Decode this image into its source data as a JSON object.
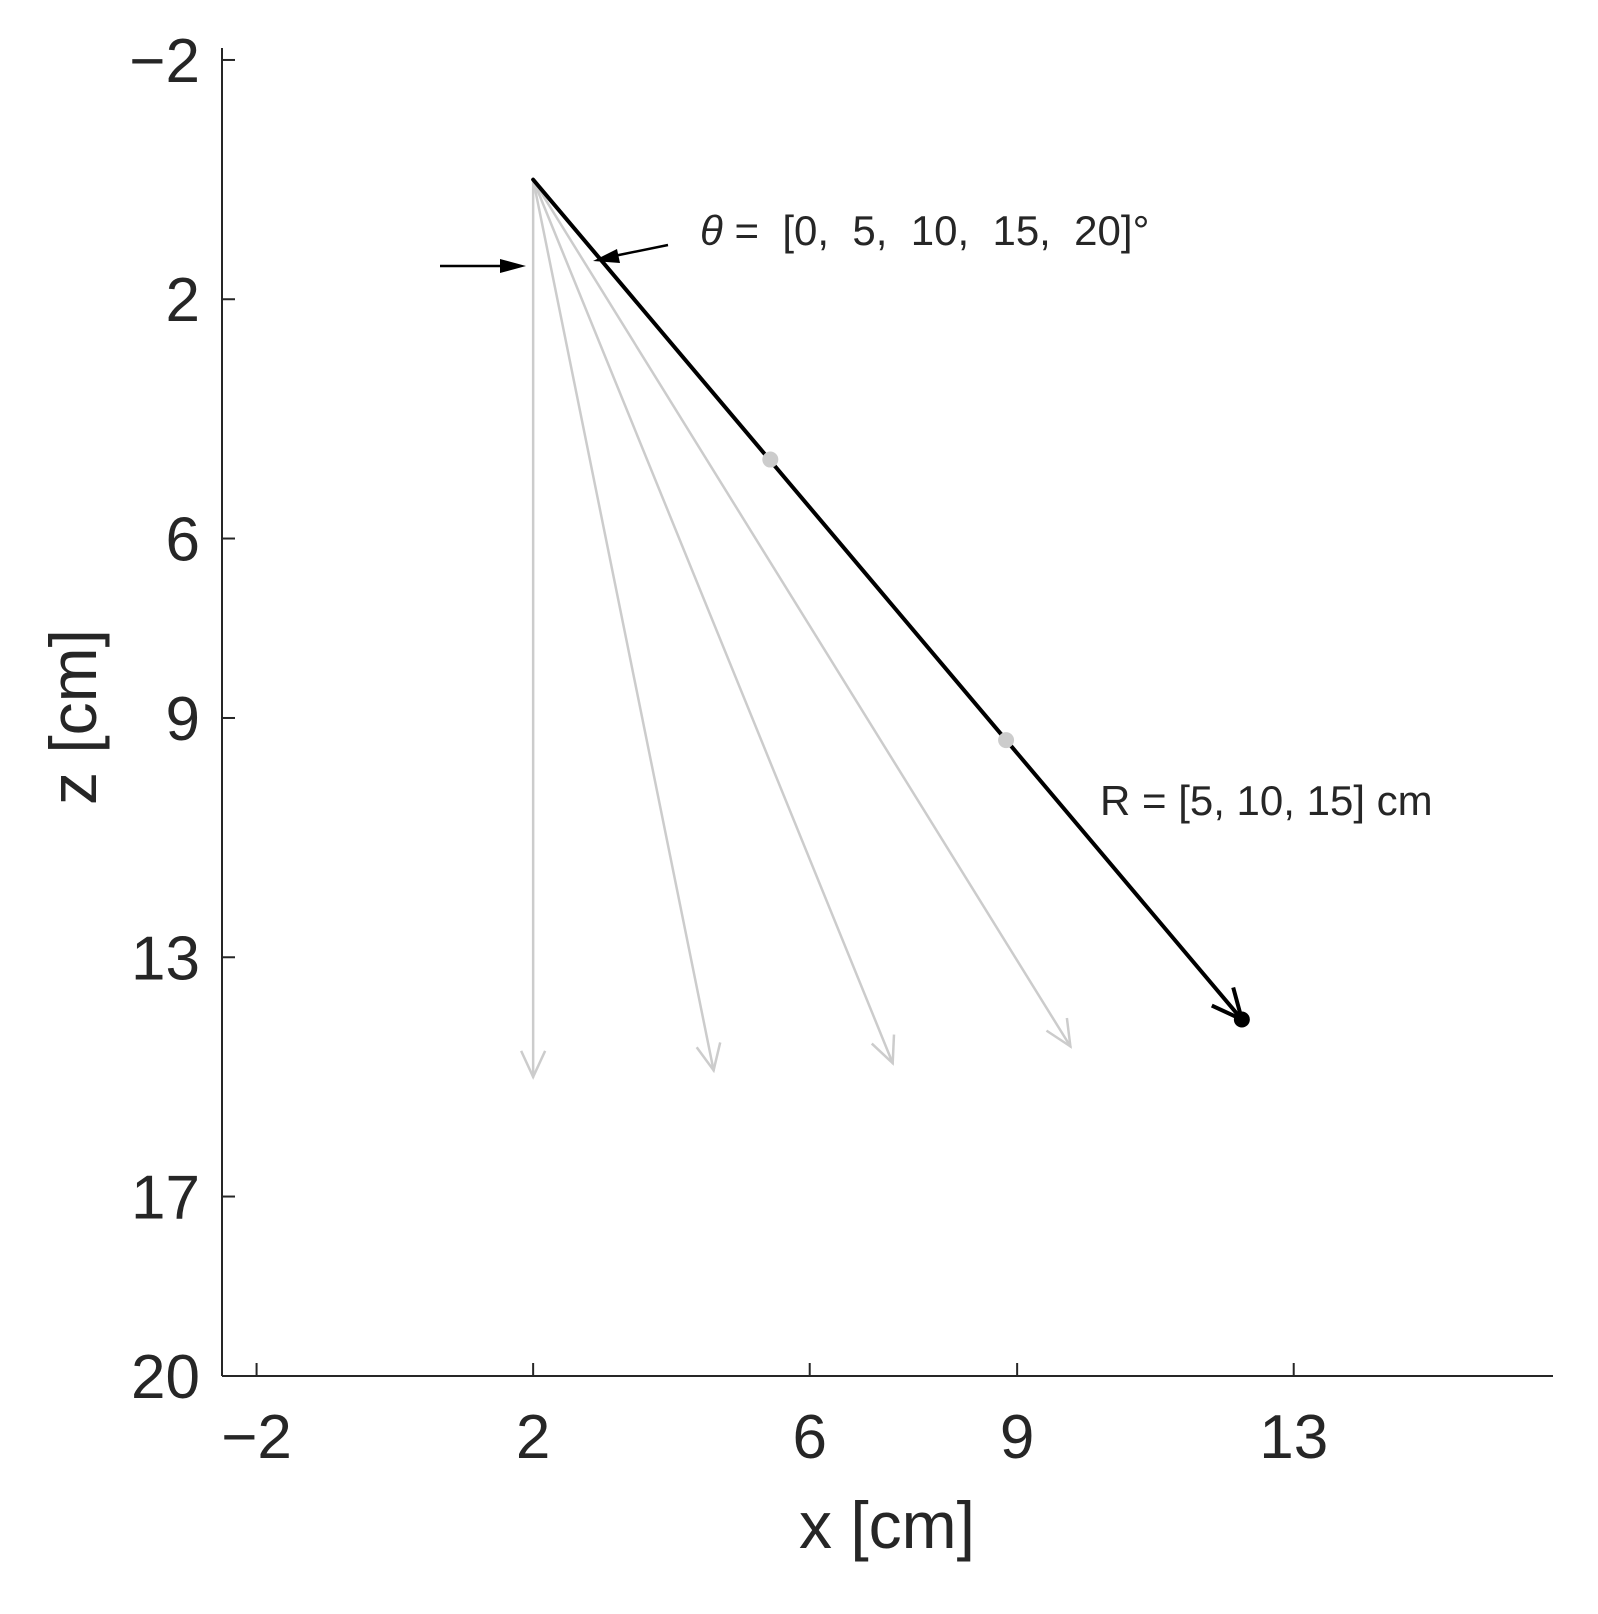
{
  "chart_data": {
    "type": "line",
    "xlabel": "x [cm]",
    "ylabel": "z [cm]",
    "xlim": [
      -2.5,
      16.75
    ],
    "ylim": [
      -2.2,
      20
    ],
    "y_reversed": true,
    "xticks": [
      -2,
      2,
      6,
      9,
      13
    ],
    "xtick_labels": [
      "−2",
      "2",
      "6",
      "9",
      "13"
    ],
    "yticks": [
      -2,
      2,
      6,
      9,
      13,
      17,
      20
    ],
    "ytick_labels": [
      "−2",
      "2",
      "6",
      "9",
      "13",
      "17",
      "20"
    ],
    "grid": false,
    "origin": {
      "x": 2,
      "z": 0
    },
    "angles_deg": [
      0,
      5,
      10,
      15,
      20
    ],
    "ranges_cm": [
      5,
      10,
      15
    ],
    "rays": [
      {
        "theta_deg": 0,
        "end": {
          "x": 2.0,
          "z": 15.0
        },
        "color": "#cccccc"
      },
      {
        "theta_deg": 5,
        "end": {
          "x": 4.61,
          "z": 14.89
        },
        "color": "#cccccc"
      },
      {
        "theta_deg": 10,
        "end": {
          "x": 7.2,
          "z": 14.77
        },
        "color": "#cccccc"
      },
      {
        "theta_deg": 15,
        "end": {
          "x": 9.77,
          "z": 14.49
        },
        "color": "#cccccc"
      },
      {
        "theta_deg": 20,
        "end": {
          "x": 12.25,
          "z": 14.04
        },
        "color": "#000000",
        "highlight": true
      }
    ],
    "range_markers": [
      {
        "x": 5.43,
        "z": 4.68,
        "color": "#cccccc"
      },
      {
        "x": 8.84,
        "z": 9.37,
        "color": "#cccccc"
      },
      {
        "x": 12.25,
        "z": 14.04,
        "color": "#000000"
      }
    ],
    "annotations": {
      "theta": {
        "symbol": "θ",
        "text": " =  [0,  5,  10,  15,  20]°"
      },
      "range": {
        "text": "R = [5, 10, 15] cm"
      }
    },
    "colors": {
      "highlight": "#000000",
      "secondary": "#cccccc",
      "axis": "#262626"
    }
  }
}
